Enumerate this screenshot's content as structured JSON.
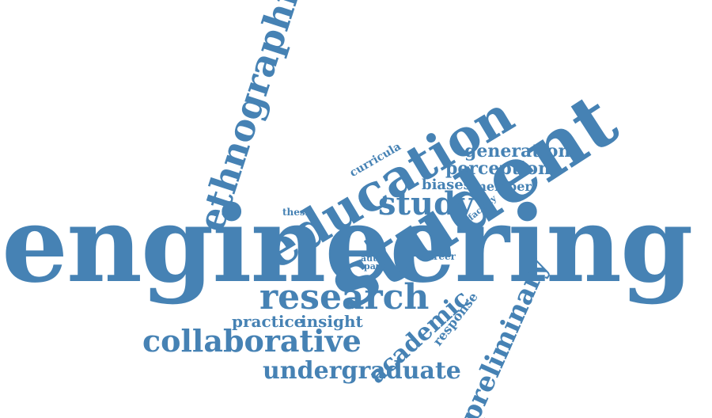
{
  "colors": {
    "word": "#4682b4",
    "background": "#ffffff"
  },
  "words": {
    "engineering": "engineering",
    "student": "student",
    "education": "education",
    "ethnographic": "ethnographic",
    "research": "research",
    "collaborative": "collaborative",
    "undergraduate": "undergraduate",
    "preliminary": "preliminary",
    "academic": "academic",
    "study": "study",
    "generation": "generation",
    "perception": "perception",
    "biases": "biases",
    "member": "member",
    "curricula": "curricula",
    "thesis": "thesis",
    "faculty": "faculty",
    "auto": "auto",
    "paper": "paper",
    "career": "career",
    "practice": "practice",
    "insight": "insight",
    "response": "response"
  }
}
